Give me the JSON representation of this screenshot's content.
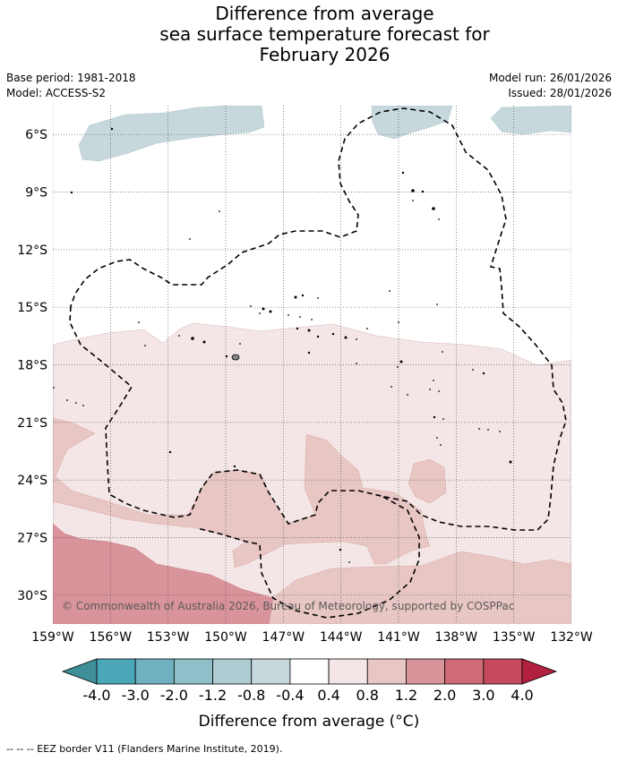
{
  "title": {
    "line1": "Difference from average",
    "line2": "sea surface temperature forecast for",
    "line3": "February 2026"
  },
  "meta": {
    "base_period": "Base period: 1981-2018",
    "model": "Model: ACCESS-S2",
    "model_run": "Model run: 26/01/2026",
    "issued": "Issued: 28/01/2026"
  },
  "map": {
    "lon_range": [
      -159,
      -132
    ],
    "lat_range": [
      -4.5,
      -31.5
    ],
    "lon_ticks": [
      "159°W",
      "156°W",
      "153°W",
      "150°W",
      "147°W",
      "144°W",
      "141°W",
      "138°W",
      "135°W",
      "132°W"
    ],
    "lat_ticks": [
      "6°S",
      "9°S",
      "12°S",
      "15°S",
      "18°S",
      "21°S",
      "24°S",
      "27°S",
      "30°S"
    ],
    "gridlines": "dotted",
    "copyright": "© Commonwealth of Australia 2026, Bureau of Meteorology, supported by COSPPac"
  },
  "colorbar": {
    "labels": [
      "-4.0",
      "-3.0",
      "-2.0",
      "-1.2",
      "-0.8",
      "-0.4",
      "0.4",
      "0.8",
      "1.2",
      "2.0",
      "3.0",
      "4.0"
    ],
    "colors": [
      "#3f8f99",
      "#4ba6b8",
      "#6fb1c0",
      "#8fbfc9",
      "#aecbd1",
      "#c6d8dc",
      "#ffffff",
      "#f4e6e6",
      "#e8c6c3",
      "#d9939a",
      "#cf6b77",
      "#c44a5c",
      "#b22140"
    ],
    "title": "Difference from average (°C)"
  },
  "footer": {
    "legend": "--  --  -- EEZ border V11 (Flanders Marine Institute, 2019)."
  }
}
